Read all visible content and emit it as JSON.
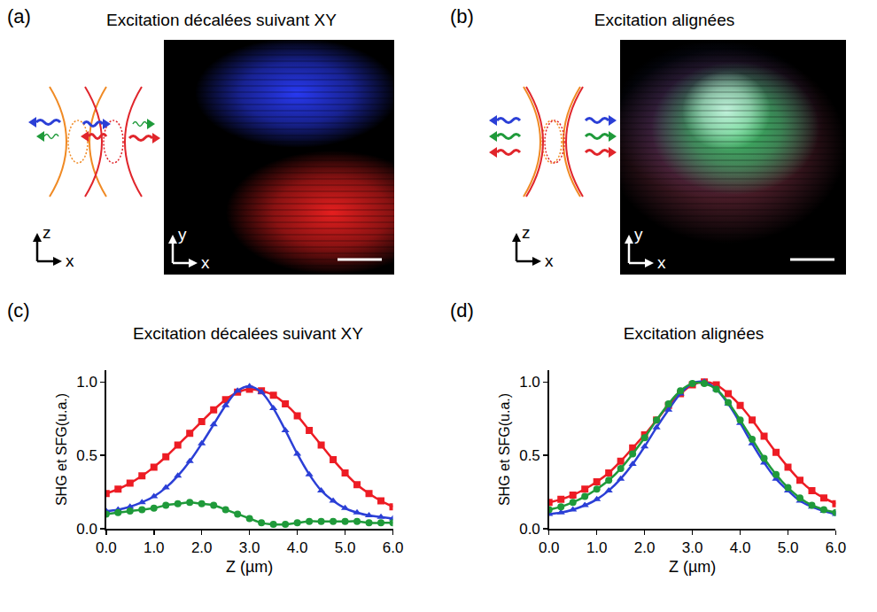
{
  "images": [
    {
      "panel_label": "(a)",
      "title": "Excitation décalées suivant XY",
      "diagram_axis_labels": {
        "vertical": "z",
        "horizontal": "x"
      },
      "image_axis_labels": {
        "vertical": "y",
        "horizontal": "x"
      }
    },
    {
      "panel_label": "(b)",
      "title": "Excitation alignées",
      "diagram_axis_labels": {
        "vertical": "z",
        "horizontal": "x"
      },
      "image_axis_labels": {
        "vertical": "y",
        "horizontal": "x"
      }
    }
  ],
  "chart_data": [
    {
      "type": "line",
      "panel_label": "(c)",
      "title": "Excitation décalées suivant XY",
      "x_label": "Z (µm)",
      "y_label": "SHG et SFG(u.a.)",
      "x": [
        0,
        0.25,
        0.5,
        0.75,
        1.0,
        1.25,
        1.5,
        1.75,
        2.0,
        2.25,
        2.5,
        2.75,
        3.0,
        3.25,
        3.5,
        3.75,
        4.0,
        4.25,
        4.5,
        4.75,
        5.0,
        5.25,
        5.5,
        5.75,
        6.0
      ],
      "xlim": [
        0,
        6
      ],
      "xticks": [
        {
          "value": 0,
          "label": "0.0"
        },
        {
          "value": 1,
          "label": "1.0"
        },
        {
          "value": 2,
          "label": "2.0"
        },
        {
          "value": 3,
          "label": "3.0"
        },
        {
          "value": 4,
          "label": "4.0"
        },
        {
          "value": 5,
          "label": "5.0"
        },
        {
          "value": 6,
          "label": "6.0"
        }
      ],
      "ylim": [
        0,
        1.08
      ],
      "yticks": [
        {
          "value": 0,
          "label": "0.0"
        },
        {
          "value": 0.5,
          "label": "0.5"
        },
        {
          "value": 1,
          "label": "1.0"
        }
      ],
      "grid": false,
      "series": [
        {
          "color": "#ed1c24",
          "marker": "square",
          "line_style": "solid",
          "values": [
            0.24,
            0.27,
            0.31,
            0.36,
            0.42,
            0.49,
            0.57,
            0.65,
            0.73,
            0.81,
            0.88,
            0.93,
            0.95,
            0.94,
            0.91,
            0.85,
            0.77,
            0.67,
            0.57,
            0.47,
            0.38,
            0.3,
            0.24,
            0.19,
            0.15
          ]
        },
        {
          "color": "#2b3fd6",
          "marker": "triangle-up",
          "line_style": "solid",
          "values": [
            0.12,
            0.13,
            0.15,
            0.18,
            0.22,
            0.28,
            0.36,
            0.46,
            0.58,
            0.71,
            0.84,
            0.94,
            0.97,
            0.93,
            0.82,
            0.67,
            0.51,
            0.37,
            0.26,
            0.19,
            0.14,
            0.11,
            0.09,
            0.08,
            0.07
          ]
        },
        {
          "color": "#1f9a3a",
          "marker": "circle",
          "line_style": "solid",
          "values": [
            0.1,
            0.11,
            0.12,
            0.13,
            0.14,
            0.16,
            0.17,
            0.18,
            0.17,
            0.16,
            0.13,
            0.1,
            0.07,
            0.04,
            0.03,
            0.03,
            0.04,
            0.05,
            0.05,
            0.05,
            0.05,
            0.05,
            0.04,
            0.04,
            0.04
          ]
        }
      ]
    },
    {
      "type": "line",
      "panel_label": "(d)",
      "title": "Excitation alignées",
      "x_label": "Z (µm)",
      "y_label": "SHG et SFG(u.a.)",
      "x": [
        0,
        0.25,
        0.5,
        0.75,
        1.0,
        1.25,
        1.5,
        1.75,
        2.0,
        2.25,
        2.5,
        2.75,
        3.0,
        3.25,
        3.5,
        3.75,
        4.0,
        4.25,
        4.5,
        4.75,
        5.0,
        5.25,
        5.5,
        5.75,
        6.0
      ],
      "xlim": [
        0,
        6
      ],
      "xticks": [
        {
          "value": 0,
          "label": "0.0"
        },
        {
          "value": 1,
          "label": "1.0"
        },
        {
          "value": 2,
          "label": "2.0"
        },
        {
          "value": 3,
          "label": "3.0"
        },
        {
          "value": 4,
          "label": "4.0"
        },
        {
          "value": 5,
          "label": "5.0"
        },
        {
          "value": 6,
          "label": "6.0"
        }
      ],
      "ylim": [
        0,
        1.08
      ],
      "yticks": [
        {
          "value": 0,
          "label": "0.0"
        },
        {
          "value": 0.5,
          "label": "0.5"
        },
        {
          "value": 1,
          "label": "1.0"
        }
      ],
      "grid": false,
      "series": [
        {
          "color": "#ed1c24",
          "marker": "square",
          "line_style": "solid",
          "values": [
            0.18,
            0.2,
            0.23,
            0.27,
            0.32,
            0.38,
            0.46,
            0.55,
            0.64,
            0.74,
            0.84,
            0.92,
            0.98,
            1.0,
            0.98,
            0.92,
            0.84,
            0.74,
            0.63,
            0.52,
            0.42,
            0.33,
            0.26,
            0.21,
            0.17
          ]
        },
        {
          "color": "#2b3fd6",
          "marker": "triangle-up",
          "line_style": "solid",
          "values": [
            0.1,
            0.11,
            0.13,
            0.16,
            0.2,
            0.26,
            0.34,
            0.44,
            0.56,
            0.69,
            0.81,
            0.92,
            0.99,
            1.0,
            0.95,
            0.85,
            0.72,
            0.58,
            0.45,
            0.34,
            0.26,
            0.19,
            0.15,
            0.12,
            0.1
          ]
        },
        {
          "color": "#1f9a3a",
          "marker": "circle",
          "line_style": "solid",
          "values": [
            0.13,
            0.15,
            0.18,
            0.22,
            0.27,
            0.33,
            0.41,
            0.51,
            0.62,
            0.74,
            0.85,
            0.94,
            0.99,
            0.99,
            0.95,
            0.86,
            0.74,
            0.61,
            0.48,
            0.37,
            0.28,
            0.21,
            0.16,
            0.13,
            0.11
          ]
        }
      ]
    }
  ]
}
